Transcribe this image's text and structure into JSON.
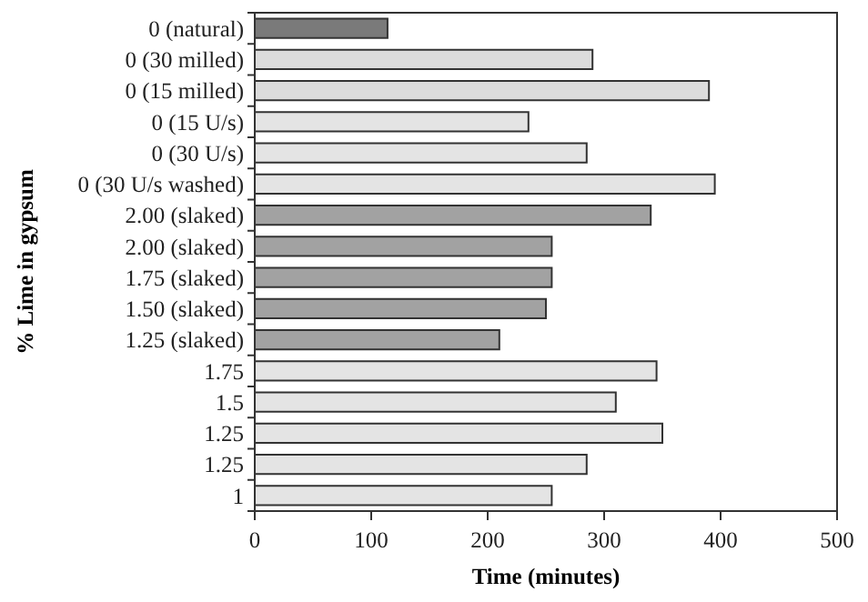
{
  "chart_data": {
    "type": "bar",
    "orientation": "horizontal",
    "xlabel": "Time (minutes)",
    "ylabel": "% Lime in gypsum",
    "categories": [
      "0 (natural)",
      "0 (30 milled)",
      "0 (15 milled)",
      "0 (15 U/s)",
      "0 (30 U/s)",
      "0 (30 U/s washed)",
      "2.00 (slaked)",
      "2.00 (slaked)",
      "1.75 (slaked)",
      "1.50 (slaked)",
      "1.25 (slaked)",
      "1.75",
      "1.5",
      "1.25",
      "1.25",
      "1"
    ],
    "values": [
      114,
      290,
      390,
      235,
      285,
      395,
      340,
      255,
      255,
      250,
      210,
      345,
      310,
      350,
      285,
      255
    ],
    "colors": [
      "#7a7a7a",
      "#dcdcdc",
      "#dcdcdc",
      "#e4e4e4",
      "#e4e4e4",
      "#e4e4e4",
      "#a2a2a2",
      "#a2a2a2",
      "#a2a2a2",
      "#a2a2a2",
      "#a2a2a2",
      "#e4e4e4",
      "#e4e4e4",
      "#e4e4e4",
      "#e4e4e4",
      "#e4e4e4"
    ],
    "xlim": [
      0,
      500
    ],
    "xticks": [
      0,
      100,
      200,
      300,
      400,
      500
    ],
    "grid": false
  }
}
